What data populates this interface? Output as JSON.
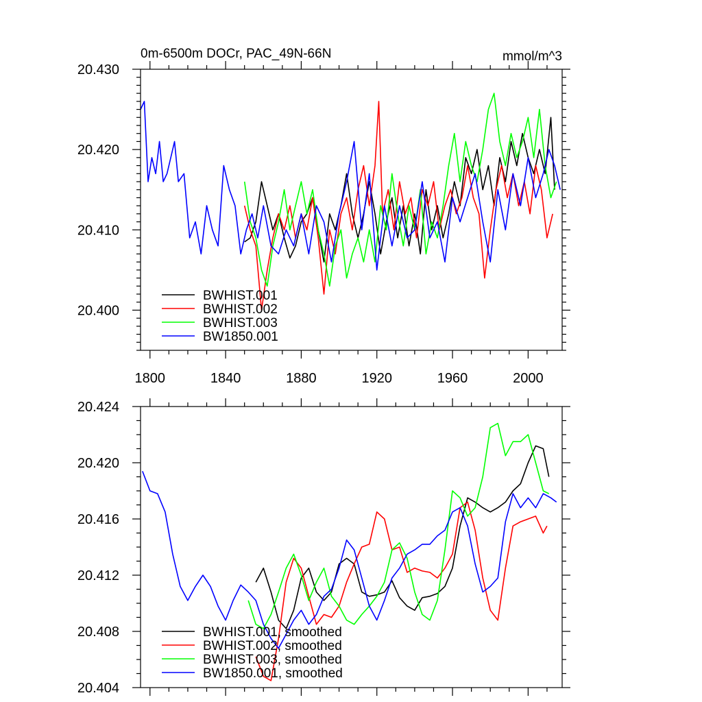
{
  "header": {
    "title": "0m-6500m DOCr, PAC_49N-66N",
    "units": "mmol/m^3"
  },
  "colors": {
    "BWHIST.001": "#000000",
    "BWHIST.002": "#ff0000",
    "BWHIST.003": "#00ff00",
    "BW1850.001": "#0000ff"
  },
  "chart_data": [
    {
      "type": "line",
      "title": "0m-6500m DOCr, PAC_49N-66N",
      "units": "mmol/m^3",
      "xlim": [
        1795,
        2018
      ],
      "ylim": [
        20.395,
        20.43
      ],
      "xticks": [
        1800,
        1840,
        1880,
        1920,
        1960,
        2000
      ],
      "xtick_labels": [
        "1800",
        "1840",
        "1880",
        "1920",
        "1960",
        "2000"
      ],
      "yticks": [
        20.4,
        20.41,
        20.42,
        20.43
      ],
      "ytick_labels": [
        "20.400",
        "20.410",
        "20.420",
        "20.430"
      ],
      "legend": "bottom-left",
      "series": [
        {
          "name": "BWHIST.001",
          "color": "#000000",
          "x": [
            1850,
            1853,
            1856,
            1859,
            1862,
            1865,
            1868,
            1871,
            1874,
            1877,
            1880,
            1883,
            1886,
            1889,
            1892,
            1895,
            1898,
            1901,
            1904,
            1907,
            1910,
            1913,
            1916,
            1919,
            1922,
            1925,
            1928,
            1931,
            1934,
            1937,
            1940,
            1943,
            1946,
            1949,
            1952,
            1955,
            1958,
            1961,
            1964,
            1967,
            1970,
            1973,
            1976,
            1979,
            1982,
            1985,
            1988,
            1991,
            1994,
            1997,
            2000,
            2003,
            2006,
            2009,
            2012,
            2014
          ],
          "y": [
            20.4085,
            20.409,
            20.411,
            20.416,
            20.413,
            20.41,
            20.412,
            20.409,
            20.4065,
            20.408,
            20.411,
            20.412,
            20.414,
            20.41,
            20.406,
            20.412,
            20.41,
            20.413,
            20.417,
            20.412,
            20.409,
            20.412,
            20.416,
            20.412,
            20.407,
            20.411,
            20.414,
            20.409,
            20.413,
            20.408,
            20.412,
            20.407,
            20.415,
            20.41,
            20.413,
            20.409,
            20.412,
            20.416,
            20.413,
            20.419,
            20.417,
            20.42,
            20.415,
            20.418,
            20.413,
            20.419,
            20.416,
            20.421,
            20.418,
            20.422,
            20.419,
            20.417,
            20.42,
            20.417,
            20.424,
            20.415
          ]
        },
        {
          "name": "BWHIST.002",
          "color": "#ff0000",
          "x": [
            1850,
            1853,
            1856,
            1859,
            1862,
            1865,
            1868,
            1871,
            1874,
            1877,
            1880,
            1883,
            1886,
            1889,
            1892,
            1895,
            1898,
            1901,
            1904,
            1907,
            1910,
            1913,
            1916,
            1919,
            1921,
            1923,
            1926,
            1929,
            1932,
            1935,
            1938,
            1941,
            1944,
            1947,
            1950,
            1953,
            1956,
            1959,
            1962,
            1965,
            1968,
            1971,
            1974,
            1977,
            1980,
            1983,
            1986,
            1989,
            1992,
            1995,
            1998,
            2001,
            2004,
            2007,
            2010,
            2013
          ],
          "y": [
            20.413,
            20.41,
            20.408,
            20.4,
            20.405,
            20.409,
            20.412,
            20.41,
            20.413,
            20.409,
            20.412,
            20.41,
            20.414,
            20.409,
            20.402,
            20.41,
            20.407,
            20.412,
            20.414,
            20.41,
            20.415,
            20.418,
            20.413,
            20.418,
            20.426,
            20.412,
            20.415,
            20.41,
            20.416,
            20.412,
            20.414,
            20.409,
            20.415,
            20.413,
            20.416,
            20.41,
            20.413,
            20.415,
            20.412,
            20.414,
            20.418,
            20.414,
            20.412,
            20.404,
            20.41,
            20.415,
            20.418,
            20.414,
            20.417,
            20.413,
            20.416,
            20.412,
            20.418,
            20.415,
            20.409,
            20.412
          ]
        },
        {
          "name": "BWHIST.003",
          "color": "#00ff00",
          "x": [
            1850,
            1853,
            1856,
            1859,
            1862,
            1865,
            1868,
            1871,
            1874,
            1877,
            1880,
            1883,
            1886,
            1889,
            1892,
            1895,
            1898,
            1901,
            1904,
            1907,
            1910,
            1913,
            1916,
            1919,
            1922,
            1925,
            1928,
            1931,
            1934,
            1937,
            1940,
            1943,
            1946,
            1949,
            1952,
            1955,
            1958,
            1961,
            1964,
            1967,
            1970,
            1973,
            1976,
            1979,
            1982,
            1985,
            1988,
            1991,
            1994,
            1997,
            2000,
            2003,
            2006,
            2009,
            2012,
            2015
          ],
          "y": [
            20.416,
            20.411,
            20.409,
            20.405,
            20.403,
            20.408,
            20.411,
            20.415,
            20.41,
            20.413,
            20.416,
            20.412,
            20.415,
            20.41,
            20.407,
            20.403,
            20.408,
            20.41,
            20.404,
            20.407,
            20.409,
            20.406,
            20.41,
            20.406,
            20.413,
            20.41,
            20.417,
            20.412,
            20.408,
            20.413,
            20.41,
            20.415,
            20.407,
            20.411,
            20.409,
            20.413,
            20.418,
            20.422,
            20.416,
            20.421,
            20.418,
            20.416,
            20.42,
            20.425,
            20.427,
            20.421,
            20.418,
            20.422,
            20.419,
            20.421,
            20.424,
            20.419,
            20.425,
            20.418,
            20.414,
            20.416
          ]
        },
        {
          "name": "BW1850.001",
          "color": "#0000ff",
          "x": [
            1795,
            1797,
            1799,
            1801,
            1803,
            1805,
            1807,
            1809,
            1811,
            1813,
            1815,
            1818,
            1821,
            1824,
            1827,
            1830,
            1833,
            1836,
            1839,
            1842,
            1845,
            1848,
            1851,
            1854,
            1857,
            1860,
            1864,
            1868,
            1872,
            1876,
            1880,
            1884,
            1888,
            1892,
            1896,
            1900,
            1904,
            1908,
            1912,
            1916,
            1920,
            1924,
            1928,
            1932,
            1936,
            1940,
            1944,
            1948,
            1952,
            1956,
            1960,
            1964,
            1968,
            1972,
            1976,
            1980,
            1984,
            1988,
            1992,
            1996,
            2000,
            2004,
            2008,
            2011,
            2014,
            2017
          ],
          "y": [
            20.425,
            20.426,
            20.416,
            20.419,
            20.417,
            20.421,
            20.416,
            20.417,
            20.419,
            20.421,
            20.416,
            20.417,
            20.409,
            20.411,
            20.407,
            20.413,
            20.41,
            20.408,
            20.418,
            20.415,
            20.413,
            20.407,
            20.41,
            20.412,
            20.409,
            20.413,
            20.408,
            20.407,
            20.41,
            20.408,
            20.412,
            20.407,
            20.413,
            20.411,
            20.406,
            20.412,
            20.416,
            20.421,
            20.41,
            20.417,
            20.405,
            20.413,
            20.408,
            20.413,
            20.409,
            20.41,
            20.416,
            20.409,
            20.411,
            20.406,
            20.414,
            20.411,
            20.414,
            20.417,
            20.411,
            20.406,
            20.415,
            20.41,
            20.417,
            20.413,
            20.419,
            20.414,
            20.417,
            20.42,
            20.418,
            20.415
          ]
        }
      ]
    },
    {
      "type": "line",
      "xlim": [
        1795,
        2018
      ],
      "ylim": [
        20.404,
        20.424
      ],
      "xticks": [
        1800,
        1840,
        1880,
        1920,
        1960,
        2000
      ],
      "yticks": [
        20.404,
        20.408,
        20.412,
        20.416,
        20.42,
        20.424
      ],
      "ytick_labels": [
        "20.404",
        "20.408",
        "20.412",
        "20.416",
        "20.420",
        "20.424"
      ],
      "legend": "bottom-left",
      "series": [
        {
          "name": "BWHIST.001, smoothed",
          "color": "#000000",
          "x": [
            1856,
            1860,
            1864,
            1868,
            1872,
            1876,
            1880,
            1884,
            1888,
            1892,
            1896,
            1900,
            1904,
            1908,
            1912,
            1916,
            1920,
            1924,
            1928,
            1932,
            1936,
            1940,
            1944,
            1948,
            1952,
            1956,
            1960,
            1964,
            1968,
            1972,
            1976,
            1980,
            1984,
            1988,
            1992,
            1996,
            2000,
            2004,
            2008,
            2011
          ],
          "y": [
            20.4115,
            20.4125,
            20.4108,
            20.4088,
            20.4082,
            20.4095,
            20.4118,
            20.4125,
            20.4108,
            20.4102,
            20.4108,
            20.4128,
            20.4132,
            20.4128,
            20.4108,
            20.4105,
            20.4106,
            20.4108,
            20.4116,
            20.4104,
            20.4098,
            20.4095,
            20.4104,
            20.4105,
            20.4107,
            20.4112,
            20.4125,
            20.4155,
            20.4175,
            20.4172,
            20.4168,
            20.4165,
            20.4168,
            20.4172,
            20.418,
            20.4185,
            20.42,
            20.4212,
            20.421,
            20.419
          ]
        },
        {
          "name": "BWHIST.002, smoothed",
          "color": "#ff0000",
          "x": [
            1856,
            1860,
            1864,
            1868,
            1872,
            1876,
            1880,
            1884,
            1888,
            1892,
            1896,
            1900,
            1904,
            1908,
            1912,
            1916,
            1920,
            1924,
            1928,
            1932,
            1936,
            1940,
            1944,
            1948,
            1952,
            1956,
            1960,
            1964,
            1968,
            1972,
            1976,
            1980,
            1984,
            1988,
            1992,
            1996,
            2000,
            2004,
            2008,
            2010
          ],
          "y": [
            20.4062,
            20.4048,
            20.4045,
            20.4075,
            20.4115,
            20.4132,
            20.4125,
            20.4105,
            20.4085,
            20.4092,
            20.409,
            20.4098,
            20.4115,
            20.4128,
            20.414,
            20.4142,
            20.4165,
            20.416,
            20.4138,
            20.414,
            20.4122,
            20.4125,
            20.4123,
            20.4122,
            20.4118,
            20.4125,
            20.4135,
            20.4168,
            20.4172,
            20.4152,
            20.4118,
            20.4095,
            20.4088,
            20.4125,
            20.4155,
            20.4158,
            20.416,
            20.4162,
            20.415,
            20.4155
          ]
        },
        {
          "name": "BWHIST.003, smoothed",
          "color": "#00ff00",
          "x": [
            1852,
            1856,
            1860,
            1864,
            1868,
            1872,
            1876,
            1880,
            1884,
            1888,
            1892,
            1896,
            1900,
            1904,
            1908,
            1912,
            1916,
            1920,
            1924,
            1928,
            1932,
            1936,
            1940,
            1944,
            1948,
            1952,
            1956,
            1960,
            1964,
            1968,
            1972,
            1976,
            1980,
            1984,
            1988,
            1992,
            1996,
            2000,
            2004,
            2008,
            2011
          ],
          "y": [
            20.4102,
            20.4085,
            20.4082,
            20.4092,
            20.4108,
            20.4125,
            20.4135,
            20.412,
            20.4102,
            20.4115,
            20.4125,
            20.4105,
            20.4098,
            20.4088,
            20.4085,
            20.4092,
            20.4098,
            20.4105,
            20.4115,
            20.4138,
            20.4143,
            20.4132,
            20.4108,
            20.4092,
            20.4088,
            20.4102,
            20.4138,
            20.418,
            20.4175,
            20.4162,
            20.4168,
            20.419,
            20.4225,
            20.4228,
            20.4205,
            20.4215,
            20.4215,
            20.422,
            20.42,
            20.418,
            20.4178
          ]
        },
        {
          "name": "BW1850.001, smoothed",
          "color": "#0000ff",
          "x": [
            1796,
            1800,
            1804,
            1808,
            1812,
            1816,
            1820,
            1824,
            1828,
            1832,
            1836,
            1840,
            1844,
            1848,
            1852,
            1856,
            1860,
            1864,
            1868,
            1872,
            1876,
            1880,
            1884,
            1888,
            1892,
            1896,
            1900,
            1904,
            1908,
            1912,
            1916,
            1920,
            1924,
            1928,
            1932,
            1936,
            1940,
            1944,
            1948,
            1952,
            1956,
            1960,
            1964,
            1968,
            1972,
            1976,
            1980,
            1984,
            1988,
            1992,
            1996,
            2000,
            2004,
            2008,
            2012,
            2015
          ],
          "y": [
            20.4194,
            20.418,
            20.4178,
            20.4165,
            20.4135,
            20.4112,
            20.4102,
            20.4112,
            20.412,
            20.4112,
            20.4098,
            20.4088,
            20.4102,
            20.4113,
            20.4108,
            20.4102,
            20.4085,
            20.4075,
            20.4068,
            20.4078,
            20.4088,
            20.4095,
            20.4085,
            20.4092,
            20.4105,
            20.411,
            20.4125,
            20.4145,
            20.4138,
            20.4118,
            20.4098,
            20.4088,
            20.4102,
            20.4118,
            20.4125,
            20.4135,
            20.4138,
            20.4142,
            20.4142,
            20.4148,
            20.4152,
            20.4165,
            20.4168,
            20.4155,
            20.4128,
            20.4108,
            20.4112,
            20.4118,
            20.4158,
            20.4178,
            20.4168,
            20.4175,
            20.4168,
            20.4178,
            20.4175,
            20.4172
          ]
        }
      ]
    }
  ]
}
